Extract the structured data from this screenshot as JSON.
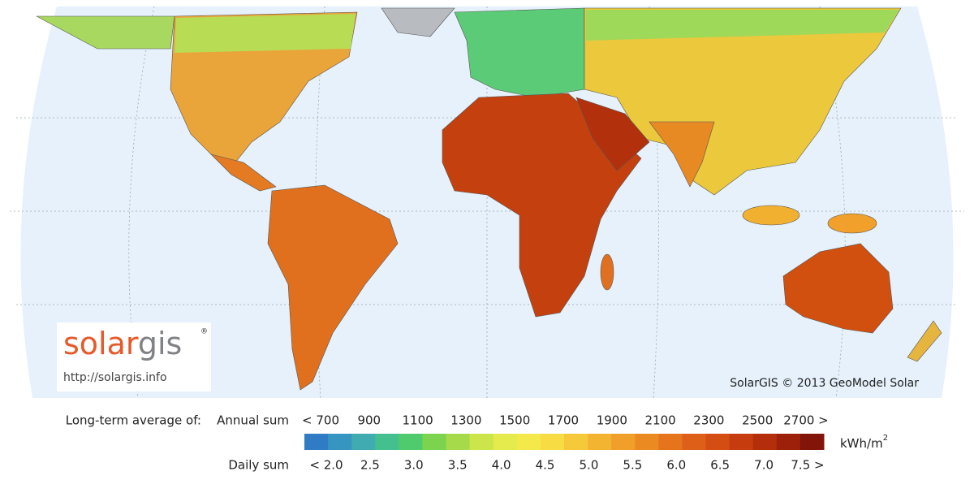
{
  "logo": {
    "brand_part1": "solar",
    "brand_part2": "gis",
    "brand_mark": "®",
    "url": "http://solargis.info"
  },
  "credit": "SolarGIS © 2013 GeoModel Solar",
  "legend": {
    "caption": "Long-term average of:",
    "annual_label": "Annual sum",
    "daily_label": "Daily sum",
    "annual_ticks": [
      "< 700",
      "900",
      "1100",
      "1300",
      "1500",
      "1700",
      "1900",
      "2100",
      "2300",
      "2500",
      "2700 >"
    ],
    "daily_ticks": [
      "< 2.0",
      "2.5",
      "3.0",
      "3.5",
      "4.0",
      "4.5",
      "5.0",
      "5.5",
      "6.0",
      "6.5",
      "7.0",
      "7.5 >"
    ],
    "unit": "kWh/m",
    "unit_exponent": "2",
    "colors": [
      "#2f7bc4",
      "#3795c1",
      "#40abb0",
      "#44c08f",
      "#4fcb6d",
      "#7bd34e",
      "#a6da4a",
      "#cce54a",
      "#e5ea4d",
      "#f4e94a",
      "#f7dc43",
      "#f5c93a",
      "#f3b432",
      "#f09f2a",
      "#ec8a22",
      "#e6741c",
      "#de5f17",
      "#d44d12",
      "#c63c0e",
      "#b42e0c",
      "#9d200b",
      "#831409"
    ]
  }
}
